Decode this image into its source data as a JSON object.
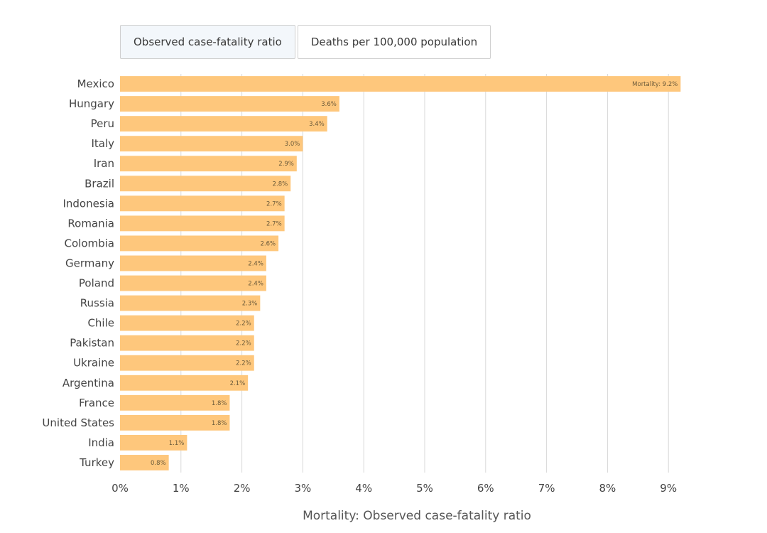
{
  "tabs": [
    {
      "label": "Observed case-fatality ratio",
      "active": true
    },
    {
      "label": "Deaths per 100,000 population",
      "active": false
    }
  ],
  "colors": {
    "bar": "#fec77c",
    "grid": "#d9d9d9"
  },
  "chart_data": {
    "type": "bar",
    "orientation": "horizontal",
    "categories": [
      "Mexico",
      "Hungary",
      "Peru",
      "Italy",
      "Iran",
      "Brazil",
      "Indonesia",
      "Romania",
      "Colombia",
      "Germany",
      "Poland",
      "Russia",
      "Chile",
      "Pakistan",
      "Ukraine",
      "Argentina",
      "France",
      "United States",
      "India",
      "Turkey"
    ],
    "values": [
      9.2,
      3.6,
      3.4,
      3.0,
      2.9,
      2.8,
      2.7,
      2.7,
      2.6,
      2.4,
      2.4,
      2.3,
      2.2,
      2.2,
      2.2,
      2.1,
      1.8,
      1.8,
      1.1,
      0.8
    ],
    "data_labels": [
      "Mortality: 9.2%",
      "3.6%",
      "3.4%",
      "3.0%",
      "2.9%",
      "2.8%",
      "2.7%",
      "2.7%",
      "2.6%",
      "2.4%",
      "2.4%",
      "2.3%",
      "2.2%",
      "2.2%",
      "2.2%",
      "2.1%",
      "1.8%",
      "1.8%",
      "1.1%",
      "0.8%"
    ],
    "xlim": [
      0,
      9.6
    ],
    "xticks": [
      0,
      1,
      2,
      3,
      4,
      5,
      6,
      7,
      8,
      9
    ],
    "xtick_labels": [
      "0%",
      "1%",
      "2%",
      "3%",
      "4%",
      "5%",
      "6%",
      "7%",
      "8%",
      "9%"
    ],
    "xlabel": "Mortality: Observed case-fatality ratio",
    "grid": true,
    "legend": "none"
  }
}
